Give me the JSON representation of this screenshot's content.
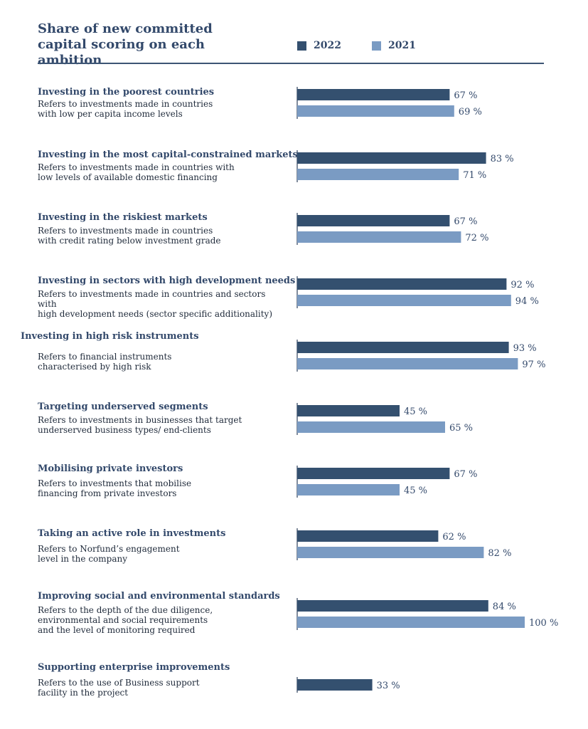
{
  "chart_data": {
    "type": "bar",
    "orientation": "horizontal",
    "title": "Share of new committed capital scoring on each ambition",
    "series": [
      {
        "name": "2022",
        "color": "#34506f"
      },
      {
        "name": "2021",
        "color": "#7a9bc3"
      }
    ],
    "unit_suffix": " %",
    "xlim": [
      0,
      100
    ],
    "grid": false,
    "legend_position": "top-right",
    "rows": [
      {
        "title": "Investing in the poorest countries",
        "description": "Refers to investments made in countries\nwith low per capita income levels",
        "values": [
          67,
          69
        ]
      },
      {
        "title": "Investing in the most capital-constrained markets",
        "description": "Refers to investments made in countries with\nlow levels of available domestic financing",
        "values": [
          83,
          71
        ]
      },
      {
        "title": "Investing in the riskiest markets",
        "description": "Refers to investments made in countries\nwith credit rating below investment grade",
        "values": [
          67,
          72
        ]
      },
      {
        "title": "Investing in sectors with high development needs",
        "description": "Refers to investments made in countries and sectors with\nhigh development needs (sector specific additionality)",
        "values": [
          92,
          94
        ]
      },
      {
        "title": "Investing in high risk instruments",
        "description": "Refers to financial instruments\ncharacterised by high risk",
        "values": [
          93,
          97
        ]
      },
      {
        "title": "Targeting underserved segments",
        "description": "Refers to investments in businesses that target\nunderserved business types/ end-clients",
        "values": [
          45,
          65
        ]
      },
      {
        "title": "Mobilising private investors",
        "description": "Refers to investments that mobilise\nfinancing from private investors",
        "values": [
          67,
          45
        ]
      },
      {
        "title": "Taking an active role in investments",
        "description": "Refers to Norfund’s engagement\nlevel in the company",
        "values": [
          62,
          82
        ]
      },
      {
        "title": "Improving social and environmental standards",
        "description": "Refers to the depth of the due diligence,\nenvironmental and social requirements\nand the level of monitoring required",
        "values": [
          84,
          100
        ]
      },
      {
        "title": "Supporting enterprise improvements",
        "description": "Refers to the use of Business support\nfacility in the project",
        "values": [
          33,
          null
        ]
      }
    ]
  }
}
